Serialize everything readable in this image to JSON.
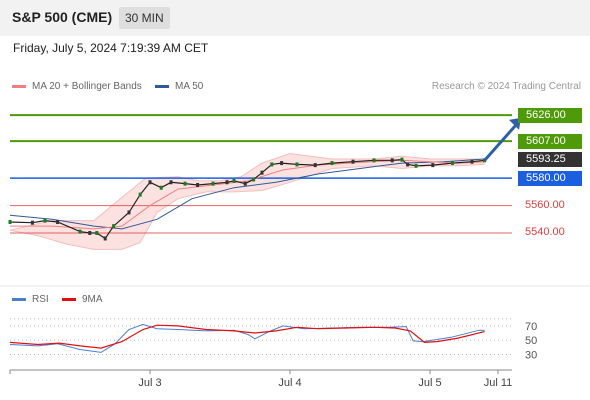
{
  "header": {
    "title": "S&P 500 (CME)",
    "timeframe": "30 MIN"
  },
  "datetime": "Friday, July 5, 2024 7:19:39 AM CET",
  "legend": {
    "ma20": {
      "label": "MA 20 + Bollinger Bands",
      "color": "#f08080"
    },
    "ma50": {
      "label": "MA 50",
      "color": "#2e5a9a"
    }
  },
  "credit": "Research © 2024 Trading Central",
  "rsi_legend": {
    "rsi": {
      "label": "RSI",
      "color": "#4a7fd0"
    },
    "ma9": {
      "label": "9MA",
      "color": "#e01010"
    }
  },
  "levels": [
    {
      "label": "5626.00",
      "value": 5626,
      "kind": "resistance",
      "color": "#4f9a08"
    },
    {
      "label": "5607.00",
      "value": 5607,
      "kind": "resistance",
      "color": "#4f9a08"
    },
    {
      "label": "5580.00",
      "value": 5580,
      "kind": "pivot",
      "color": "#1a5fe0"
    },
    {
      "label": "5560.00",
      "value": 5560,
      "kind": "support",
      "color": "#e04040"
    },
    {
      "label": "5540.00",
      "value": 5540,
      "kind": "support",
      "color": "#e04040"
    }
  ],
  "last_price": {
    "label": "5593.25",
    "value": 5593.25,
    "color": "#333333"
  },
  "chart_data": {
    "type": "line",
    "price_range": [
      5513,
      5637
    ],
    "x_labels": [
      "Jul 3",
      "Jul 4",
      "Jul 5",
      "Jul 11"
    ],
    "price_path": [
      [
        0,
        5548
      ],
      [
        1.6,
        5547.5
      ],
      [
        2.5,
        5549
      ],
      [
        3.4,
        5548
      ],
      [
        5,
        5541
      ],
      [
        5.7,
        5540
      ],
      [
        6.2,
        5540
      ],
      [
        6.8,
        5536
      ],
      [
        7.4,
        5545
      ],
      [
        8.5,
        5555
      ],
      [
        9.3,
        5568
      ],
      [
        10,
        5577
      ],
      [
        10.8,
        5573
      ],
      [
        11.5,
        5577
      ],
      [
        12.5,
        5576
      ],
      [
        13.4,
        5575
      ],
      [
        14.5,
        5576
      ],
      [
        15.5,
        5577
      ],
      [
        16,
        5578
      ],
      [
        16.8,
        5576
      ],
      [
        17.4,
        5579
      ],
      [
        18,
        5584
      ],
      [
        18.7,
        5590
      ],
      [
        19.4,
        5591
      ],
      [
        20.5,
        5590
      ],
      [
        21.8,
        5589.5
      ],
      [
        23,
        5591
      ],
      [
        24.5,
        5592
      ],
      [
        26,
        5593
      ],
      [
        27.3,
        5593
      ],
      [
        28,
        5593.5
      ],
      [
        28.4,
        5590
      ],
      [
        29,
        5589
      ],
      [
        30.2,
        5589.5
      ],
      [
        31.6,
        5591
      ],
      [
        33,
        5592
      ],
      [
        33.9,
        5593
      ]
    ],
    "ma20_path": [
      [
        0,
        5545
      ],
      [
        3,
        5545
      ],
      [
        6,
        5543
      ],
      [
        8,
        5545
      ],
      [
        10,
        5560
      ],
      [
        12,
        5572
      ],
      [
        14.5,
        5575
      ],
      [
        17,
        5578
      ],
      [
        19.5,
        5586
      ],
      [
        22,
        5589.5
      ],
      [
        25,
        5591.5
      ],
      [
        28,
        5593
      ],
      [
        30,
        5592
      ],
      [
        32,
        5591
      ],
      [
        33.9,
        5592
      ]
    ],
    "bollinger_upper_path": [
      [
        0,
        5542
      ],
      [
        3,
        5549
      ],
      [
        6,
        5549
      ],
      [
        8,
        5566
      ],
      [
        9.7,
        5580
      ],
      [
        12,
        5581
      ],
      [
        13.5,
        5578
      ],
      [
        15,
        5578
      ],
      [
        16.5,
        5581
      ],
      [
        18,
        5591
      ],
      [
        20,
        5598
      ],
      [
        23,
        5594
      ],
      [
        26,
        5594
      ],
      [
        28,
        5596
      ],
      [
        30,
        5594
      ],
      [
        32,
        5594
      ],
      [
        33.9,
        5594
      ]
    ],
    "bollinger_lower_path": [
      [
        0,
        5542
      ],
      [
        2,
        5538
      ],
      [
        4,
        5532
      ],
      [
        6,
        5528
      ],
      [
        8,
        5528
      ],
      [
        9.3,
        5533
      ],
      [
        10.5,
        5555
      ],
      [
        12,
        5565
      ],
      [
        14,
        5570
      ],
      [
        16,
        5570
      ],
      [
        18,
        5571
      ],
      [
        20,
        5577
      ],
      [
        23,
        5587
      ],
      [
        26,
        5589
      ],
      [
        28,
        5587
      ],
      [
        30,
        5589
      ],
      [
        32,
        5589
      ],
      [
        33.9,
        5590
      ]
    ],
    "ma50_path": [
      [
        0,
        5553
      ],
      [
        3,
        5550
      ],
      [
        6,
        5545
      ],
      [
        8,
        5543
      ],
      [
        10.5,
        5550
      ],
      [
        13,
        5565
      ],
      [
        16,
        5573
      ],
      [
        19,
        5577
      ],
      [
        22,
        5583
      ],
      [
        25,
        5587
      ],
      [
        28,
        5591
      ],
      [
        31,
        5592
      ],
      [
        33.9,
        5594
      ]
    ],
    "forecast_arrow": {
      "from": [
        33.9,
        5593
      ],
      "to": [
        36.5,
        5624
      ],
      "color": "#2e5fa8"
    },
    "rsi": {
      "range": [
        14,
        81
      ],
      "ticks": [
        30,
        50,
        70
      ],
      "rsi_path": [
        [
          0,
          44
        ],
        [
          2,
          42
        ],
        [
          3.4,
          45
        ],
        [
          5,
          37
        ],
        [
          6.5,
          33
        ],
        [
          7.5,
          45
        ],
        [
          8.5,
          65
        ],
        [
          9.5,
          72
        ],
        [
          10.5,
          66
        ],
        [
          12,
          65
        ],
        [
          14,
          63
        ],
        [
          16,
          64
        ],
        [
          17,
          58
        ],
        [
          17.5,
          52
        ],
        [
          18.5,
          62
        ],
        [
          19.5,
          70
        ],
        [
          21,
          66
        ],
        [
          23,
          67
        ],
        [
          25,
          68
        ],
        [
          27,
          68
        ],
        [
          28.3,
          69
        ],
        [
          28.8,
          49
        ],
        [
          29.5,
          48
        ],
        [
          30.5,
          51
        ],
        [
          31.5,
          54
        ],
        [
          32.5,
          59
        ],
        [
          33.5,
          64
        ],
        [
          33.9,
          64
        ]
      ],
      "ma9_path": [
        [
          0,
          47
        ],
        [
          2,
          44
        ],
        [
          3.5,
          46
        ],
        [
          5,
          42
        ],
        [
          6.5,
          39
        ],
        [
          8,
          48
        ],
        [
          9.5,
          65
        ],
        [
          10.5,
          71
        ],
        [
          12,
          70
        ],
        [
          14,
          65
        ],
        [
          16,
          63
        ],
        [
          17.5,
          60
        ],
        [
          19,
          63
        ],
        [
          20.5,
          68
        ],
        [
          22,
          66
        ],
        [
          24,
          67
        ],
        [
          26,
          68
        ],
        [
          27.5,
          67
        ],
        [
          28.6,
          63
        ],
        [
          29.6,
          47
        ],
        [
          30.5,
          48
        ],
        [
          32,
          53
        ],
        [
          33.9,
          62
        ]
      ]
    }
  }
}
